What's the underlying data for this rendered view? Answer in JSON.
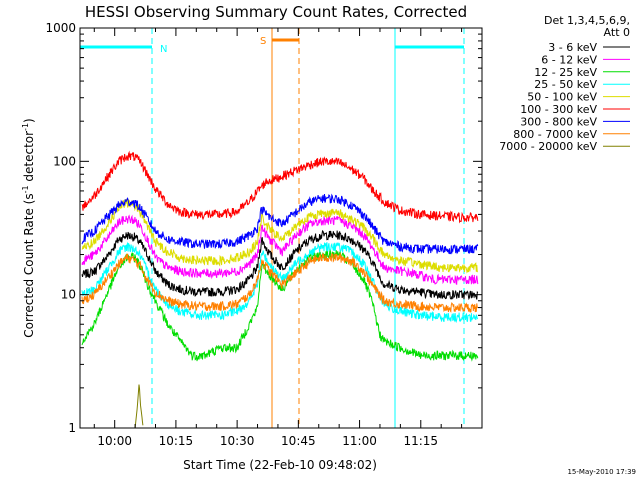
{
  "chart_data": {
    "type": "line",
    "title": "HESSI Observing Summary Count Rates, Corrected",
    "xlabel": "Start Time (22-Feb-10 09:48:02)",
    "ylabel": "Corrected Count Rate (s",
    "ylabel_sup1": "-1",
    "ylabel_mid": " detector",
    "ylabel_sup2": "-1",
    "ylabel_end": ")",
    "yscale": "log",
    "ylim": [
      1,
      1000
    ],
    "xlim_minutes": [
      -8.5,
      90
    ],
    "x_tick_labels": [
      "10:00",
      "10:15",
      "10:30",
      "10:45",
      "11:00",
      "11:15"
    ],
    "x_tick_minutes": [
      0,
      15,
      30,
      45,
      60,
      75
    ],
    "y_tick_labels": [
      "1",
      "10",
      "100",
      "1000"
    ],
    "y_tick_values": [
      1,
      10,
      100,
      1000
    ],
    "legend_header": [
      "Det 1,3,4,5,6,9,",
      "Att 0"
    ],
    "legend_position": "top-right outside",
    "series": [
      {
        "name": "3 - 6 keV",
        "color": "#000000",
        "x": [
          -8,
          -5,
          -2,
          1,
          3,
          5,
          6.5,
          8,
          10,
          13,
          16,
          20,
          26,
          30,
          33,
          35,
          36,
          38,
          41,
          45,
          48,
          51,
          55,
          58,
          61,
          63,
          66,
          70,
          75,
          78,
          80,
          83,
          89
        ],
        "y": [
          14,
          15,
          19,
          26,
          28,
          27,
          24,
          20,
          15,
          12,
          11,
          10.5,
          10.5,
          11,
          13,
          16,
          26,
          20,
          16,
          22,
          26,
          28,
          28,
          26,
          22,
          18,
          12,
          11,
          10.5,
          10,
          10,
          10,
          10
        ]
      },
      {
        "name": "6 - 12 keV",
        "color": "#ff00ff",
        "x": [
          -8,
          -5,
          -2,
          1,
          3,
          5,
          6.5,
          8,
          10,
          13,
          16,
          20,
          26,
          30,
          33,
          35,
          36,
          38,
          41,
          45,
          48,
          51,
          55,
          58,
          61,
          63,
          66,
          70,
          75,
          78,
          80,
          83,
          89
        ],
        "y": [
          18,
          20,
          26,
          35,
          37,
          36,
          32,
          26,
          19,
          16,
          15,
          14.5,
          14.5,
          15,
          17,
          20,
          32,
          26,
          21,
          29,
          34,
          36,
          36,
          33,
          28,
          23,
          16,
          15,
          14,
          13,
          13,
          13,
          13
        ]
      },
      {
        "name": "12 - 25 keV",
        "color": "#00dd00",
        "x": [
          -8,
          -5,
          -2,
          1,
          3,
          5,
          6.5,
          8,
          10,
          13,
          16,
          19,
          22,
          26,
          30,
          33,
          35,
          36,
          38,
          41,
          45,
          48,
          51,
          55,
          58,
          61,
          63,
          65,
          66,
          70,
          75,
          80,
          85,
          89
        ],
        "y": [
          4.5,
          6,
          10,
          16,
          19,
          19,
          16,
          12,
          9,
          6,
          4.5,
          3.5,
          3.5,
          4,
          4,
          6,
          8,
          17,
          14,
          11,
          16,
          19,
          20,
          20,
          17,
          13,
          9,
          5,
          4.5,
          4,
          3.5,
          3.5,
          3.5,
          3.5
        ]
      },
      {
        "name": "25 - 50 keV",
        "color": "#00ffff",
        "x": [
          -8,
          -5,
          -2,
          1,
          3,
          5,
          6.5,
          8,
          10,
          13,
          16,
          20,
          26,
          30,
          33,
          35,
          36,
          38,
          41,
          45,
          48,
          51,
          55,
          58,
          61,
          63,
          66,
          70,
          75,
          80,
          89
        ],
        "y": [
          10,
          11,
          15,
          21,
          23,
          22,
          19,
          15,
          11,
          8.5,
          7.5,
          7,
          7,
          7.5,
          9,
          12,
          21,
          17,
          13,
          18,
          21,
          23,
          23,
          21,
          17,
          13,
          8.5,
          7.5,
          7,
          6.8,
          6.8
        ]
      },
      {
        "name": "50 - 100 keV",
        "color": "#dddd00",
        "x": [
          -8,
          -5,
          -2,
          1,
          3,
          5,
          6.5,
          8,
          10,
          13,
          16,
          20,
          26,
          30,
          33,
          35,
          36,
          38,
          41,
          45,
          48,
          51,
          55,
          58,
          61,
          63,
          66,
          70,
          75,
          80,
          89
        ],
        "y": [
          22,
          25,
          33,
          45,
          49,
          47,
          41,
          33,
          25,
          21,
          19,
          18,
          18,
          19,
          21,
          25,
          38,
          31,
          26,
          34,
          39,
          41,
          41,
          37,
          32,
          27,
          20,
          18,
          17,
          16,
          16
        ]
      },
      {
        "name": "100 - 300 keV",
        "color": "#ff0000",
        "x": [
          -8,
          -5,
          -2,
          1,
          3,
          5,
          6.5,
          8,
          10,
          13,
          16,
          20,
          26,
          30,
          33,
          35,
          37,
          40,
          44,
          48,
          51,
          55,
          58,
          61,
          63,
          66,
          70,
          75,
          80,
          85,
          89
        ],
        "y": [
          45,
          55,
          75,
          100,
          110,
          108,
          97,
          80,
          62,
          48,
          42,
          40,
          40,
          42,
          50,
          60,
          70,
          75,
          85,
          95,
          100,
          98,
          88,
          75,
          62,
          50,
          43,
          40,
          39,
          38,
          38
        ]
      },
      {
        "name": "300 - 800 keV",
        "color": "#0000ff",
        "x": [
          -8,
          -5,
          -2,
          1,
          3,
          5,
          6.5,
          8,
          10,
          13,
          16,
          20,
          26,
          30,
          33,
          35,
          36,
          38,
          41,
          45,
          48,
          51,
          55,
          58,
          61,
          63,
          66,
          70,
          75,
          80,
          89
        ],
        "y": [
          26,
          30,
          38,
          47,
          50,
          49,
          44,
          37,
          30,
          26,
          25,
          24,
          24,
          25,
          28,
          32,
          44,
          38,
          34,
          43,
          50,
          53,
          52,
          47,
          40,
          33,
          25,
          23,
          22,
          22,
          22
        ]
      },
      {
        "name": "800 - 7000 keV",
        "color": "#ff8000",
        "x": [
          -8,
          -5,
          -2,
          1,
          3,
          5,
          6.5,
          8,
          10,
          13,
          16,
          20,
          26,
          30,
          33,
          35,
          36,
          38,
          41,
          45,
          48,
          51,
          55,
          58,
          61,
          63,
          66,
          70,
          75,
          80,
          89
        ],
        "y": [
          9,
          10,
          13,
          17,
          19,
          18,
          16,
          13,
          10.5,
          9,
          8.5,
          8.2,
          8.2,
          8.5,
          10,
          13,
          18,
          15,
          12,
          15,
          18,
          19,
          19,
          18,
          15,
          12,
          9,
          8.5,
          8.2,
          8,
          8
        ]
      },
      {
        "name": "7000 - 20000 keV",
        "color": "#808000",
        "x": [
          5,
          5.6,
          6,
          6.3,
          7
        ],
        "y": [
          1,
          1.5,
          2.2,
          1.5,
          1
        ]
      }
    ],
    "observing_flags": [
      {
        "label": "N",
        "color": "#00ffff"
      },
      {
        "label": "S",
        "color": "#ff8000"
      }
    ]
  },
  "footer_date": "15-May-2010 17:39"
}
